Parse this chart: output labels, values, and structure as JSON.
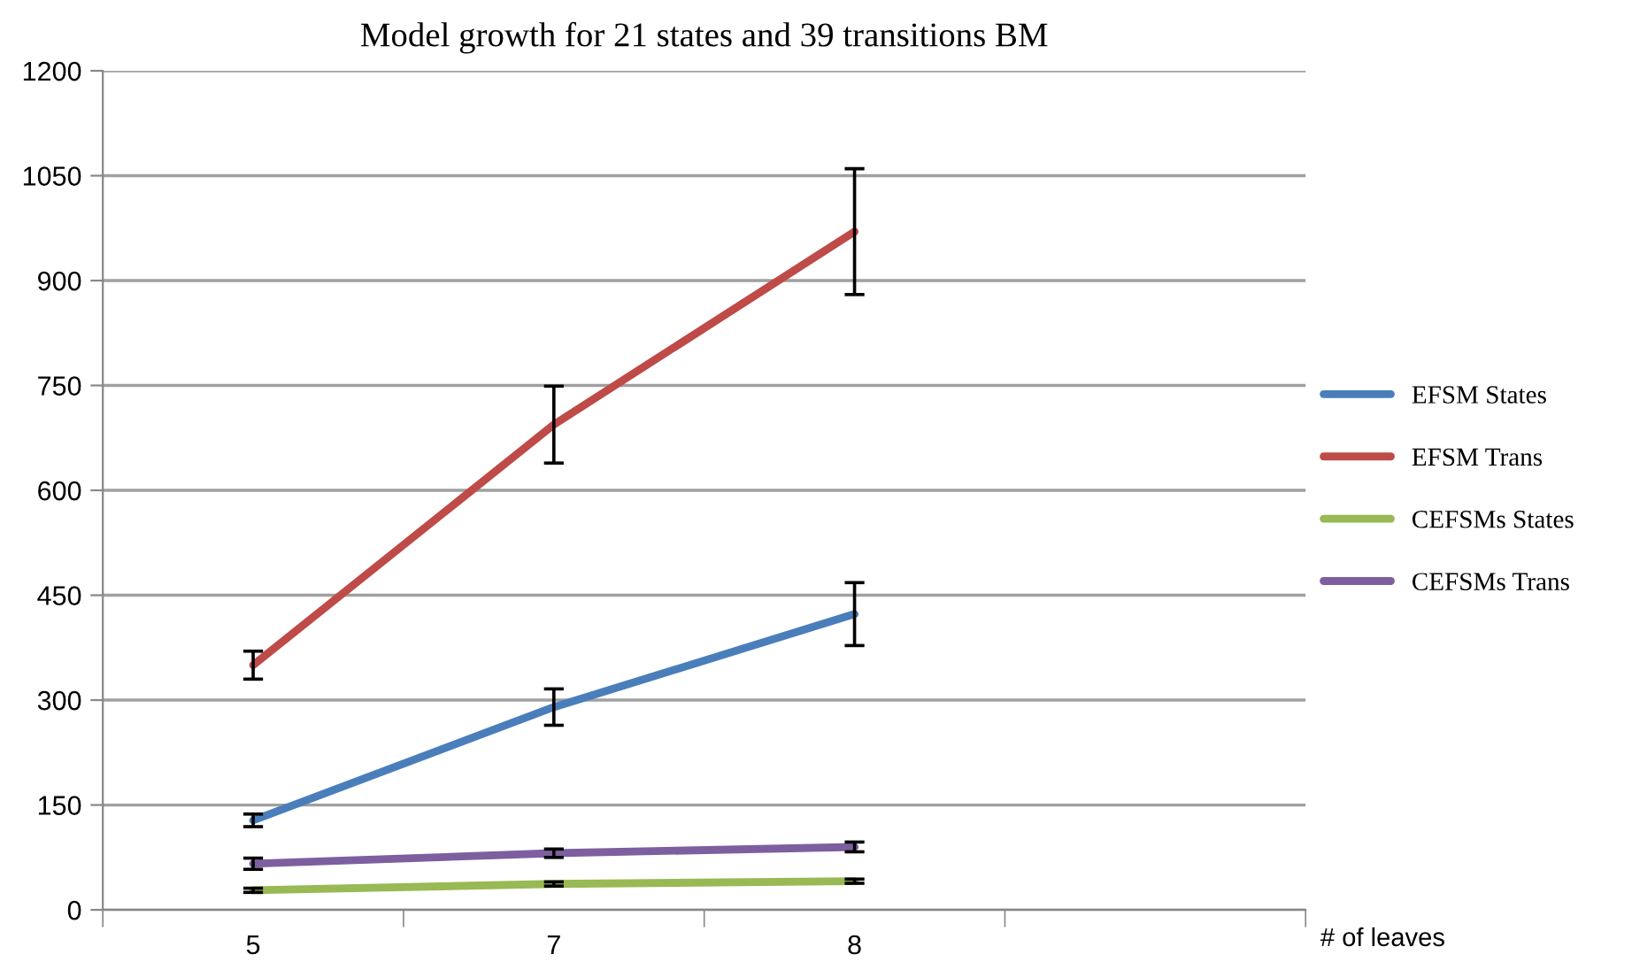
{
  "chart_data": {
    "type": "line",
    "title": "Model growth for 21 states and 39 transitions BM",
    "xlabel": "# of leaves",
    "categories": [
      "5",
      "7",
      "8",
      null
    ],
    "series": [
      {
        "name": "EFSM States",
        "color": "#4a7ebb",
        "values": [
          128,
          290,
          423,
          null
        ],
        "errors": [
          9,
          26,
          45,
          null
        ]
      },
      {
        "name": "EFSM Trans",
        "color": "#be4b48",
        "values": [
          350,
          694,
          970,
          null
        ],
        "errors": [
          20,
          55,
          90,
          null
        ]
      },
      {
        "name": "CEFSMs States",
        "color": "#98b954",
        "values": [
          28,
          37,
          41,
          null
        ],
        "errors": [
          3,
          3,
          3,
          null
        ]
      },
      {
        "name": "CEFSMs Trans",
        "color": "#7d5fa0",
        "values": [
          66,
          81,
          90,
          null
        ],
        "errors": [
          8,
          6,
          7,
          null
        ]
      }
    ],
    "ylim": [
      0,
      1200
    ],
    "yticks": [
      0,
      150,
      300,
      450,
      600,
      750,
      900,
      1050,
      1200
    ],
    "grid": "y",
    "legend": "right",
    "marker": "none",
    "line_style": "solid"
  }
}
